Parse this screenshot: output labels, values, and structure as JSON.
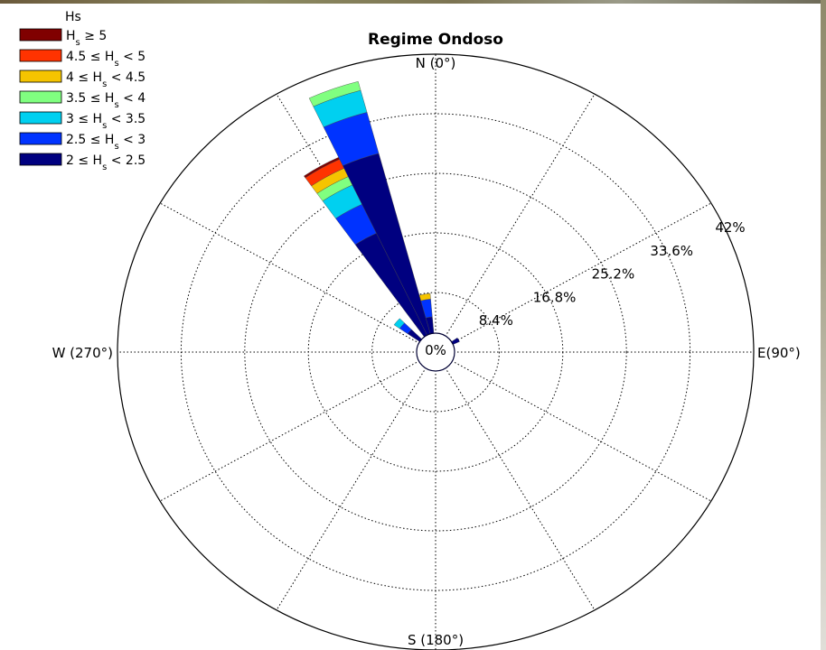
{
  "chart_data": {
    "type": "windrose",
    "title": "Regime Ondoso",
    "direction_labels": {
      "north": "N (0°)",
      "east": "E(90°)",
      "south": "S (180°)",
      "west": "W (270°)"
    },
    "radial_ticks": [
      "8.4%",
      "16.8%",
      "25.2%",
      "33.6%",
      "42%"
    ],
    "radial_tick_values": [
      8.4,
      16.8,
      25.2,
      33.6,
      42
    ],
    "r_max": 42,
    "center_label": "0%",
    "calm_radius_percent": 2.5,
    "legend": {
      "title": "Hs",
      "placement": "top-left",
      "entries": [
        {
          "text": "H_s ≥ 5",
          "color": "#800000"
        },
        {
          "text": "4.5 ≤ H_s < 5",
          "color": "#ff3300"
        },
        {
          "text": "4 ≤ H_s < 4.5",
          "color": "#f5c400"
        },
        {
          "text": "3.5 ≤ H_s < 4",
          "color": "#80ff80"
        },
        {
          "text": "3 ≤ H_s < 3.5",
          "color": "#00d0f0"
        },
        {
          "text": "2.5 ≤ H_s < 3",
          "color": "#0033ff"
        },
        {
          "text": "2 ≤ H_s < 2.5",
          "color": "#000080"
        }
      ]
    },
    "sector_width_deg": 10,
    "sectors": [
      {
        "direction": 330,
        "cumulative": [
          18.5,
          23.0,
          26.0,
          27.3,
          28.6,
          30.0,
          30.3
        ]
      },
      {
        "direction": 340,
        "cumulative": [
          29.0,
          35.0,
          38.2,
          39.5,
          39.5,
          39.5,
          39.5
        ]
      },
      {
        "direction": 350,
        "cumulative": [
          5.0,
          7.5,
          7.5,
          7.5,
          8.3,
          8.3,
          8.3
        ]
      },
      {
        "direction": 310,
        "cumulative": [
          4.5,
          5.8,
          6.7,
          6.7,
          6.7,
          6.7,
          6.7
        ]
      },
      {
        "direction": 60,
        "cumulative": [
          3.5,
          3.5,
          3.5,
          3.5,
          3.5,
          3.5,
          3.5
        ]
      }
    ]
  }
}
